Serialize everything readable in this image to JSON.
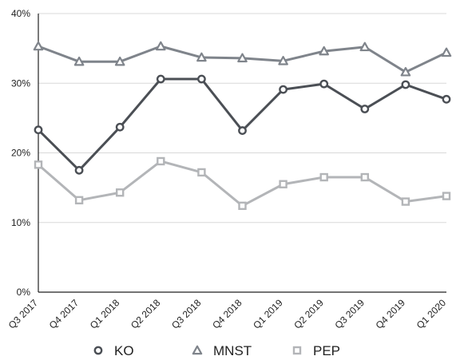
{
  "chart_data": {
    "type": "line",
    "title": "",
    "xlabel": "",
    "ylabel": "",
    "categories": [
      "Q3 2017",
      "Q4 2017",
      "Q1 2018",
      "Q2 2018",
      "Q3 2018",
      "Q4 2018",
      "Q1 2019",
      "Q2 2019",
      "Q3 2019",
      "Q4 2019",
      "Q1 2020"
    ],
    "ylim": [
      0,
      40
    ],
    "yticks": [
      0,
      10,
      20,
      30,
      40
    ],
    "ytick_labels": [
      "0%",
      "10%",
      "20%",
      "30%",
      "40%"
    ],
    "grid": true,
    "legend_position": "bottom",
    "series": [
      {
        "name": "KO",
        "marker": "circle",
        "color": "#4b4f55",
        "values": [
          23.3,
          17.5,
          23.7,
          30.6,
          30.6,
          23.2,
          29.1,
          29.9,
          26.3,
          29.8,
          27.7
        ]
      },
      {
        "name": "MNST",
        "marker": "triangle",
        "color": "#7f848b",
        "values": [
          35.3,
          33.1,
          33.1,
          35.3,
          33.7,
          33.6,
          33.2,
          34.6,
          35.2,
          31.6,
          34.4
        ]
      },
      {
        "name": "PEP",
        "marker": "square",
        "color": "#b3b5b8",
        "values": [
          18.3,
          13.2,
          14.3,
          18.8,
          17.2,
          12.4,
          15.5,
          16.5,
          16.5,
          13.0,
          13.8
        ]
      }
    ]
  }
}
